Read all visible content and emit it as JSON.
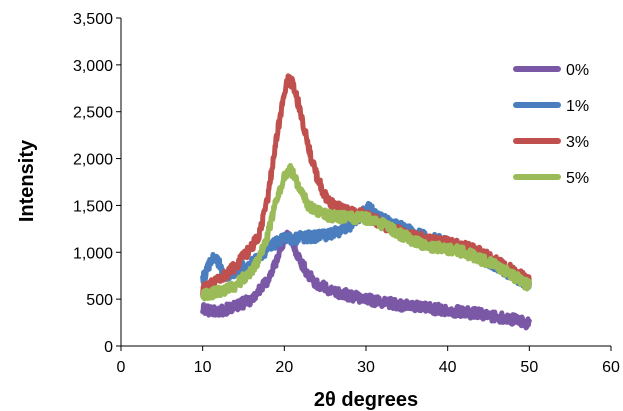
{
  "chart_data": {
    "type": "line",
    "title": "",
    "xlabel": "2θ degrees",
    "ylabel": "Intensity",
    "xlim": [
      0,
      60
    ],
    "ylim": [
      0,
      3500
    ],
    "x_ticks": [
      0,
      10,
      20,
      30,
      40,
      50,
      60
    ],
    "y_ticks": [
      0,
      500,
      1000,
      1500,
      2000,
      2500,
      3000,
      3500
    ],
    "x_tick_labels": [
      "0",
      "10",
      "20",
      "30",
      "40",
      "50",
      "60"
    ],
    "y_tick_labels": [
      "0",
      "500",
      "1,000",
      "1,500",
      "2,000",
      "2,500",
      "3,000",
      "3,500"
    ],
    "grid": false,
    "legend_position": "top-right",
    "series": [
      {
        "name": "0%",
        "color": "#7b58a6",
        "points": [
          [
            10,
            390
          ],
          [
            12,
            370
          ],
          [
            14,
            420
          ],
          [
            16,
            500
          ],
          [
            18,
            700
          ],
          [
            19,
            900
          ],
          [
            20,
            1150
          ],
          [
            20.5,
            1180
          ],
          [
            21,
            1100
          ],
          [
            22,
            900
          ],
          [
            23,
            750
          ],
          [
            24,
            660
          ],
          [
            26,
            580
          ],
          [
            28,
            540
          ],
          [
            30,
            500
          ],
          [
            32,
            470
          ],
          [
            34,
            440
          ],
          [
            36,
            420
          ],
          [
            38,
            400
          ],
          [
            40,
            380
          ],
          [
            42,
            360
          ],
          [
            44,
            340
          ],
          [
            46,
            310
          ],
          [
            48,
            280
          ],
          [
            50,
            240
          ]
        ]
      },
      {
        "name": "1%",
        "color": "#4a7ebf",
        "points": [
          [
            10,
            720
          ],
          [
            10.5,
            800
          ],
          [
            11,
            900
          ],
          [
            11.5,
            960
          ],
          [
            12,
            880
          ],
          [
            12.5,
            760
          ],
          [
            13,
            760
          ],
          [
            14,
            800
          ],
          [
            15,
            840
          ],
          [
            16,
            880
          ],
          [
            17,
            950
          ],
          [
            18,
            1050
          ],
          [
            19,
            1100
          ],
          [
            20,
            1150
          ],
          [
            21,
            1130
          ],
          [
            22,
            1160
          ],
          [
            24,
            1170
          ],
          [
            26,
            1200
          ],
          [
            28,
            1280
          ],
          [
            30,
            1450
          ],
          [
            30.5,
            1480
          ],
          [
            31,
            1420
          ],
          [
            32,
            1350
          ],
          [
            34,
            1280
          ],
          [
            36,
            1200
          ],
          [
            38,
            1150
          ],
          [
            40,
            1100
          ],
          [
            42,
            1050
          ],
          [
            44,
            960
          ],
          [
            46,
            850
          ],
          [
            48,
            750
          ],
          [
            50,
            650
          ]
        ]
      },
      {
        "name": "3%",
        "color": "#c0504d",
        "points": [
          [
            10,
            600
          ],
          [
            12,
            700
          ],
          [
            14,
            850
          ],
          [
            16,
            1050
          ],
          [
            17,
            1200
          ],
          [
            18,
            1600
          ],
          [
            19,
            2200
          ],
          [
            20,
            2700
          ],
          [
            20.5,
            2860
          ],
          [
            21,
            2800
          ],
          [
            22,
            2500
          ],
          [
            23,
            2100
          ],
          [
            24,
            1800
          ],
          [
            25,
            1600
          ],
          [
            26,
            1500
          ],
          [
            28,
            1420
          ],
          [
            30,
            1400
          ],
          [
            32,
            1300
          ],
          [
            34,
            1220
          ],
          [
            36,
            1170
          ],
          [
            38,
            1120
          ],
          [
            40,
            1100
          ],
          [
            42,
            1060
          ],
          [
            44,
            1000
          ],
          [
            46,
            900
          ],
          [
            48,
            800
          ],
          [
            50,
            700
          ]
        ]
      },
      {
        "name": "5%",
        "color": "#9bbb59",
        "points": [
          [
            10,
            540
          ],
          [
            12,
            580
          ],
          [
            14,
            650
          ],
          [
            16,
            800
          ],
          [
            17,
            950
          ],
          [
            18,
            1200
          ],
          [
            19,
            1550
          ],
          [
            20,
            1800
          ],
          [
            20.5,
            1900
          ],
          [
            21,
            1850
          ],
          [
            22,
            1650
          ],
          [
            23,
            1500
          ],
          [
            24,
            1450
          ],
          [
            25,
            1400
          ],
          [
            26,
            1380
          ],
          [
            28,
            1370
          ],
          [
            30,
            1360
          ],
          [
            32,
            1300
          ],
          [
            34,
            1200
          ],
          [
            36,
            1120
          ],
          [
            38,
            1060
          ],
          [
            40,
            1040
          ],
          [
            42,
            1000
          ],
          [
            44,
            930
          ],
          [
            46,
            850
          ],
          [
            48,
            750
          ],
          [
            50,
            640
          ]
        ]
      }
    ]
  }
}
